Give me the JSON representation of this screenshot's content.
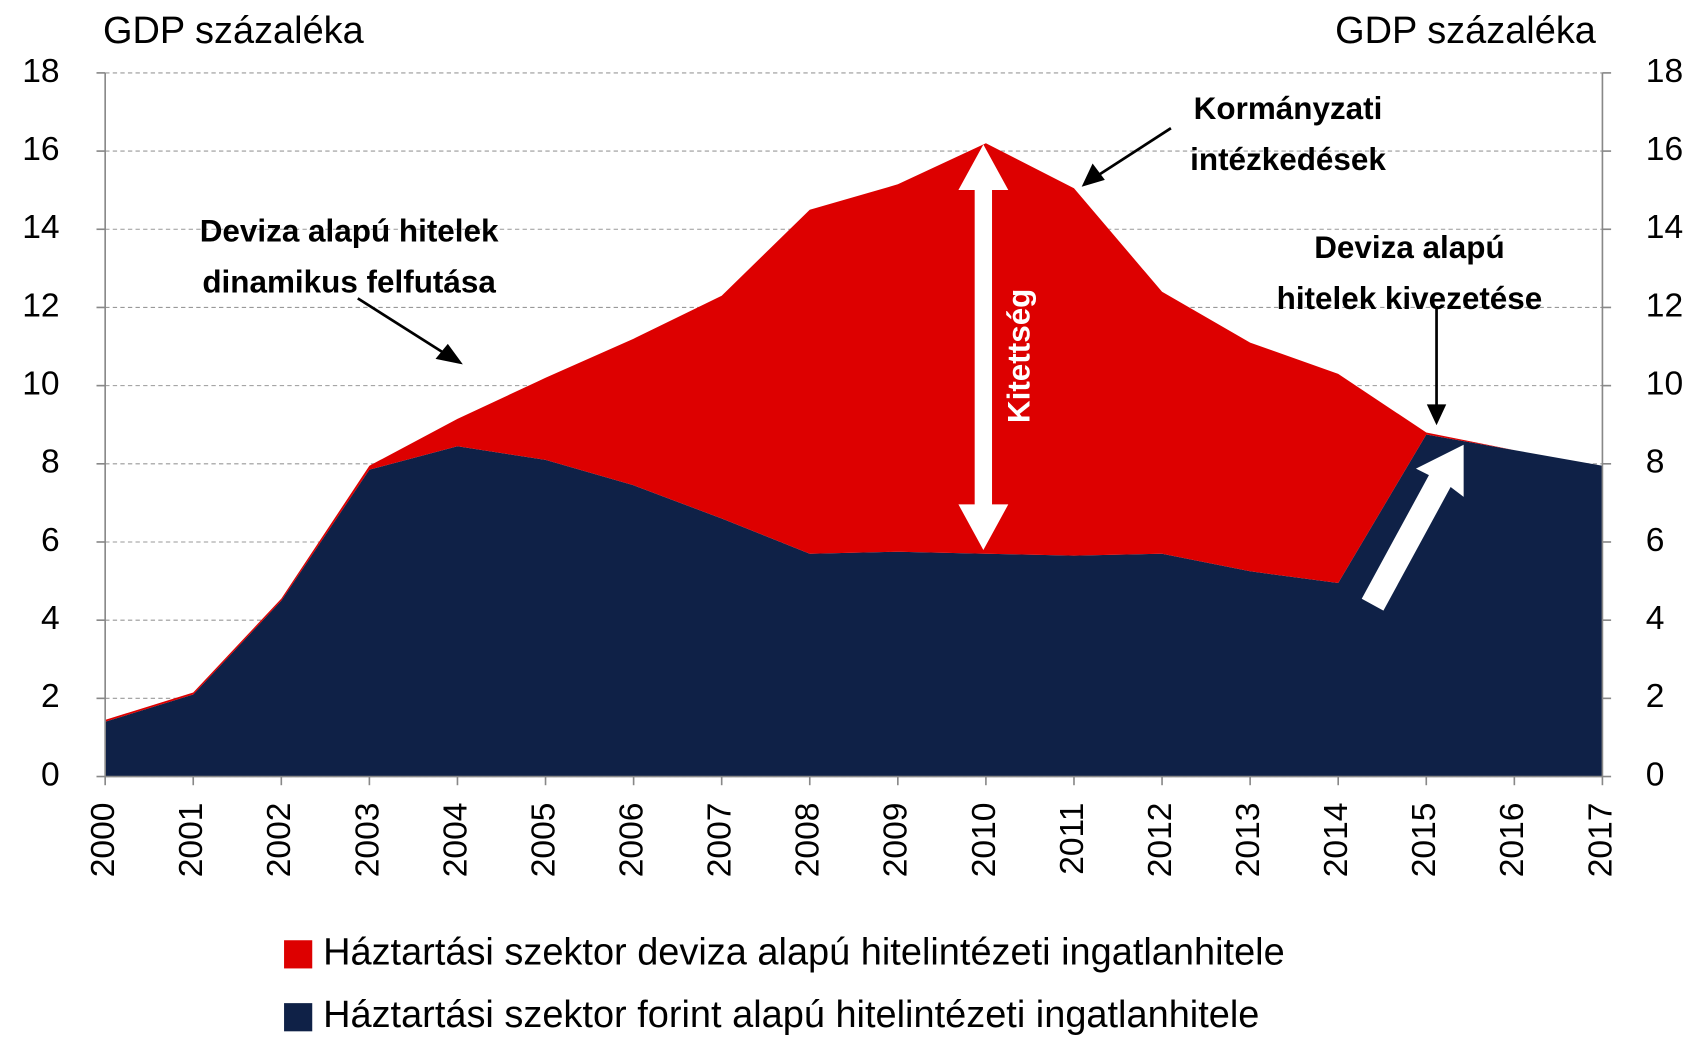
{
  "chart_data": {
    "type": "area",
    "stacked": true,
    "y_label": "GDP százaléka",
    "y2_label": "GDP százaléka",
    "categories": [
      "2000",
      "2001",
      "2002",
      "2003",
      "2004",
      "2005",
      "2006",
      "2007",
      "2008",
      "2009",
      "2010",
      "2011",
      "2012",
      "2013",
      "2014",
      "2015",
      "2016",
      "2017"
    ],
    "series": [
      {
        "name": "Háztartási szektor deviza alapú hitelintézeti ingatlanhitele",
        "color": "#dd0000",
        "values": [
          0.05,
          0.05,
          0.05,
          0.1,
          0.7,
          2.1,
          3.75,
          5.7,
          8.8,
          9.4,
          10.5,
          9.4,
          6.7,
          5.85,
          5.35,
          0.05,
          0,
          0
        ]
      },
      {
        "name": "Háztartási szektor forint alapú hitelintézeti ingatlanhitele",
        "color": "#0f2147",
        "values": [
          1.4,
          2.1,
          4.5,
          7.85,
          8.45,
          8.1,
          7.45,
          6.6,
          5.7,
          5.75,
          5.7,
          5.65,
          5.7,
          5.25,
          4.95,
          8.75,
          8.35,
          7.95
        ]
      }
    ],
    "ylim": [
      0,
      18
    ],
    "yticks": [
      0,
      2,
      4,
      6,
      8,
      10,
      12,
      14,
      16,
      18
    ],
    "y2lim": [
      0,
      18
    ],
    "y2ticks": [
      0,
      2,
      4,
      6,
      8,
      10,
      12,
      14,
      16,
      18
    ],
    "grid": true,
    "annotations": [
      {
        "lines": [
          "Deviza alapú hitelek",
          "dinamikus felfutása"
        ]
      },
      {
        "lines": [
          "Kormányzati",
          "intézkedések"
        ]
      },
      {
        "lines": [
          "Deviza alapú",
          "hitelek kivezetése"
        ]
      },
      {
        "lines": [
          "Kitettség"
        ]
      }
    ]
  }
}
